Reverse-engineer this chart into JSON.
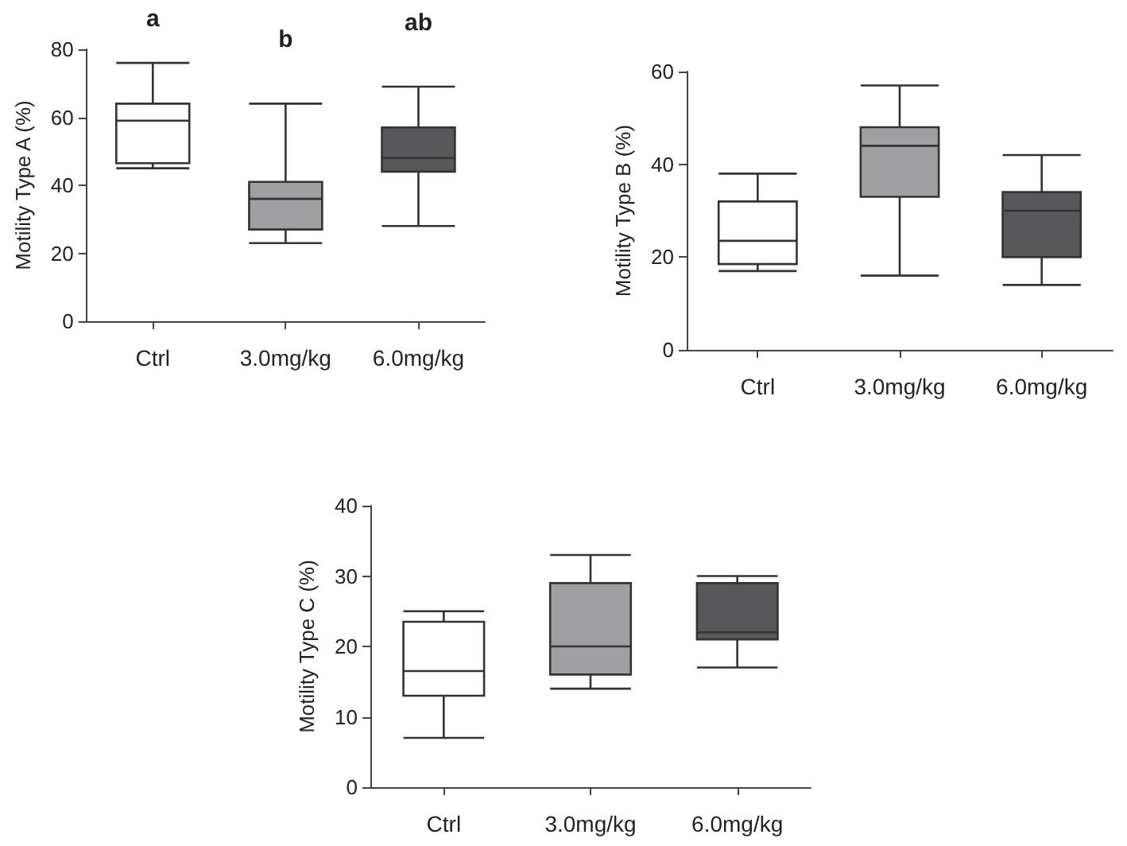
{
  "chart_data": [
    {
      "type": "box",
      "ylabel": "Motility Type A (%)",
      "categories": [
        "Ctrl",
        "3.0mg/kg",
        "6.0mg/kg"
      ],
      "colors": [
        "#ffffff",
        "#a0a0a2",
        "#58585a"
      ],
      "boxes": [
        {
          "low": 45,
          "q1": 46.5,
          "median": 59,
          "q3": 64,
          "high": 76
        },
        {
          "low": 23,
          "q1": 27,
          "median": 36,
          "q3": 41,
          "high": 64
        },
        {
          "low": 28,
          "q1": 44,
          "median": 48,
          "q3": 57,
          "high": 69
        }
      ],
      "ylim": [
        0,
        80
      ],
      "yticks": [
        0,
        20,
        40,
        60,
        80
      ],
      "grid": false,
      "annotations": [
        "a",
        "b",
        "ab"
      ]
    },
    {
      "type": "box",
      "ylabel": "Motility Type B (%)",
      "categories": [
        "Ctrl",
        "3.0mg/kg",
        "6.0mg/kg"
      ],
      "colors": [
        "#ffffff",
        "#a0a0a2",
        "#58585a"
      ],
      "boxes": [
        {
          "low": 17,
          "q1": 18.5,
          "median": 23.5,
          "q3": 32,
          "high": 38
        },
        {
          "low": 16,
          "q1": 33,
          "median": 44,
          "q3": 48,
          "high": 57
        },
        {
          "low": 14,
          "q1": 20,
          "median": 30,
          "q3": 34,
          "high": 42
        }
      ],
      "ylim": [
        0,
        60
      ],
      "yticks": [
        0,
        20,
        40,
        60
      ],
      "grid": false
    },
    {
      "type": "box",
      "ylabel": "Motility Type C (%)",
      "categories": [
        "Ctrl",
        "3.0mg/kg",
        "6.0mg/kg"
      ],
      "colors": [
        "#ffffff",
        "#a0a0a2",
        "#58585a"
      ],
      "boxes": [
        {
          "low": 7,
          "q1": 13,
          "median": 16.5,
          "q3": 23.5,
          "high": 25
        },
        {
          "low": 14,
          "q1": 16,
          "median": 20,
          "q3": 29,
          "high": 33
        },
        {
          "low": 17,
          "q1": 21,
          "median": 22,
          "q3": 29,
          "high": 30
        }
      ],
      "ylim": [
        0,
        40
      ],
      "yticks": [
        0,
        10,
        20,
        30,
        40
      ],
      "grid": false
    }
  ]
}
